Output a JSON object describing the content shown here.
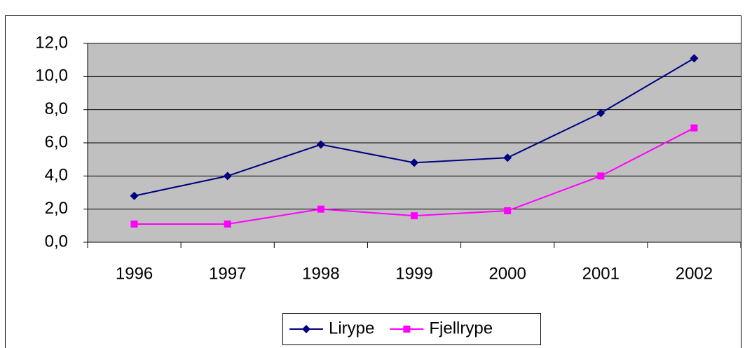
{
  "chart_data": {
    "type": "line",
    "categories": [
      "1996",
      "1997",
      "1998",
      "1999",
      "2000",
      "2001",
      "2002"
    ],
    "series": [
      {
        "name": "Lirype",
        "color": "#000080",
        "marker": "diamond",
        "values": [
          2.8,
          4.0,
          5.9,
          4.8,
          5.1,
          7.8,
          11.1
        ]
      },
      {
        "name": "Fjellrype",
        "color": "#ff00ff",
        "marker": "square",
        "values": [
          1.1,
          1.1,
          2.0,
          1.6,
          1.9,
          4.0,
          6.9
        ]
      }
    ],
    "ylim": [
      0,
      12
    ],
    "yticks": [
      {
        "value": 0,
        "label": "0,0"
      },
      {
        "value": 2,
        "label": "2,0"
      },
      {
        "value": 4,
        "label": "4,0"
      },
      {
        "value": 6,
        "label": "6,0"
      },
      {
        "value": 8,
        "label": "8,0"
      },
      {
        "value": 10,
        "label": "10,0"
      },
      {
        "value": 12,
        "label": "12,0"
      }
    ],
    "grid": true,
    "plot_background": "#c0c0c0",
    "legend": "bottom"
  }
}
